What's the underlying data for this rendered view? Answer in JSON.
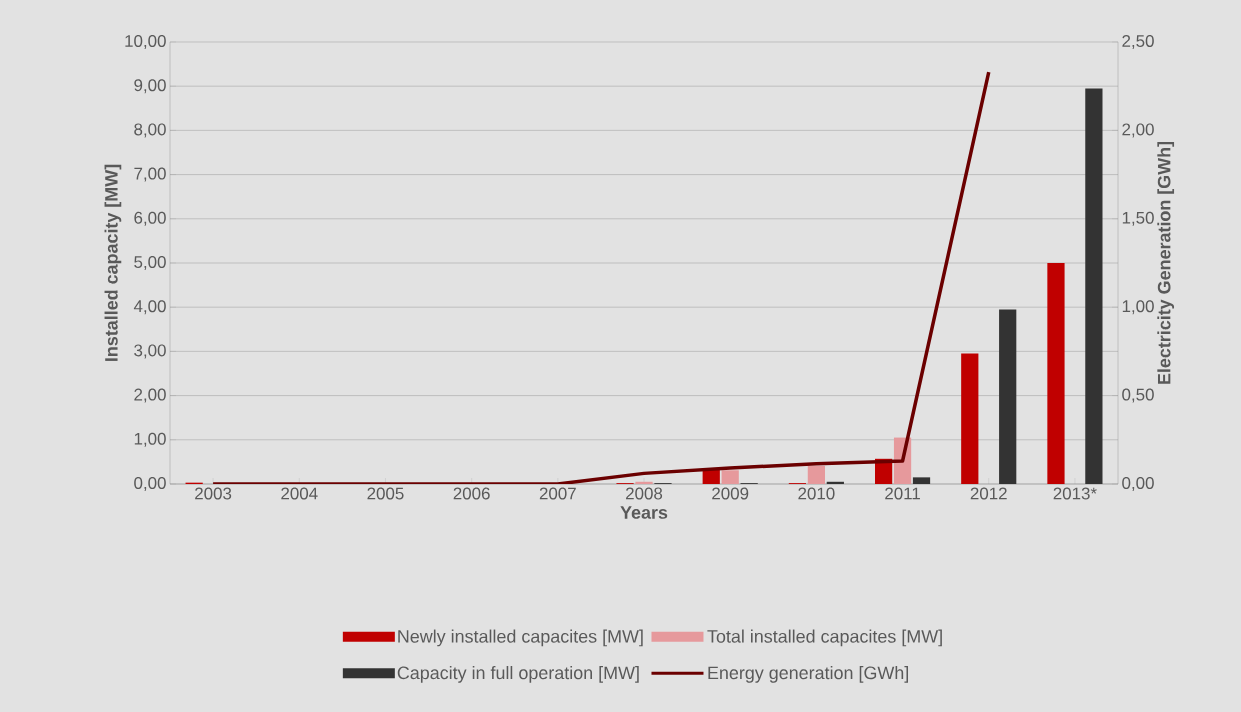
{
  "chart_data": {
    "type": "bar",
    "xlabel": "Years",
    "ylabel": "Installed capacity [MW]",
    "y2label": "Electricity Generation [GWh]",
    "categories": [
      "2003",
      "2004",
      "2005",
      "2006",
      "2007",
      "2008",
      "2009",
      "2010",
      "2011",
      "2012",
      "2013*"
    ],
    "series": [
      {
        "name": "Newly installed capacites [MW]",
        "color": "#c00000",
        "values": [
          0.03,
          0,
          0,
          0,
          0,
          0.02,
          0.34,
          0.02,
          0.57,
          2.95,
          5.0
        ]
      },
      {
        "name": "Total installed capacites [MW]",
        "color": "#e6999c",
        "values": [
          0,
          0,
          0,
          0,
          0,
          0.05,
          0.31,
          0.41,
          1.05,
          0,
          0
        ]
      },
      {
        "name": "Capacity in full operation [MW]",
        "color": "#333333",
        "values": [
          0,
          0,
          0,
          0,
          0,
          0.02,
          0.02,
          0.05,
          0.15,
          3.95,
          8.95
        ]
      },
      {
        "name": "Energy generation [GWh]",
        "type": "line",
        "axis": "y2",
        "color": "#6b0000",
        "values": [
          0,
          0,
          0,
          0,
          0,
          0.06,
          0.09,
          0.115,
          0.13,
          2.33,
          null
        ]
      }
    ],
    "ylim": [
      0,
      10
    ],
    "yticks": [
      {
        "value": 0,
        "label": "0,00"
      },
      {
        "value": 1,
        "label": "1,00"
      },
      {
        "value": 2,
        "label": "2,00"
      },
      {
        "value": 3,
        "label": "3,00"
      },
      {
        "value": 4,
        "label": "4,00"
      },
      {
        "value": 5,
        "label": "5,00"
      },
      {
        "value": 6,
        "label": "6,00"
      },
      {
        "value": 7,
        "label": "7,00"
      },
      {
        "value": 8,
        "label": "8,00"
      },
      {
        "value": 9,
        "label": "9,00"
      },
      {
        "value": 10,
        "label": "10,00"
      }
    ],
    "y2lim": [
      0,
      2.5
    ],
    "y2ticks": [
      {
        "value": 0,
        "label": "0,00"
      },
      {
        "value": 0.5,
        "label": "0,50"
      },
      {
        "value": 1,
        "label": "1,00"
      },
      {
        "value": 1.5,
        "label": "1,50"
      },
      {
        "value": 2,
        "label": "2,00"
      },
      {
        "value": 2.5,
        "label": "2,50"
      }
    ],
    "grid": "y",
    "legend": "bottom"
  }
}
